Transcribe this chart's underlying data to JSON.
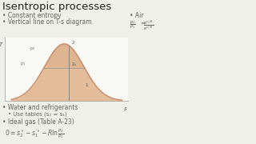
{
  "title": "Isentropic processes",
  "title_fontsize": 9,
  "bg_color": "#f0f0eb",
  "text_color": "#666660",
  "bullets_left": [
    "Constant entropy",
    "Vertical line on T-s diagram"
  ],
  "bullets_right_header": "Air",
  "bullets_bottom": [
    "Water and refrigerants",
    "Use tables (s₂ = s₁)",
    "Ideal gas (Table A-23)"
  ],
  "curve_color": "#c8896a",
  "fill_color": "#daa880",
  "fill_color2": "#e8c4a0",
  "line_color": "#888880",
  "diagram_bg": "#f8f8f4"
}
